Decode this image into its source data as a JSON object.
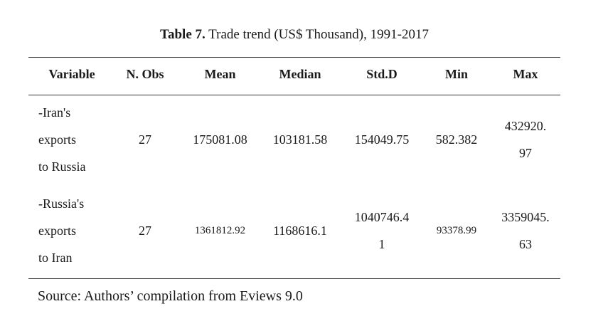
{
  "caption": {
    "label": "Table 7.",
    "text": " Trade trend (US$ Thousand), 1991-2017"
  },
  "table": {
    "headers": [
      "Variable",
      "N. Obs",
      "Mean",
      "Median",
      "Std.D",
      "Min",
      "Max"
    ],
    "rows": [
      {
        "variable": [
          "-Iran's",
          "exports",
          "to Russia"
        ],
        "n_obs": "27",
        "mean": "175081.08",
        "median": "103181.58",
        "std": [
          "154049.75"
        ],
        "min": "582.382",
        "max": [
          "432920.",
          "97"
        ]
      },
      {
        "variable": [
          "-Russia's",
          "exports",
          "to Iran"
        ],
        "n_obs": "27",
        "mean": "1361812.92",
        "median": "1168616.1",
        "std": [
          "1040746.4",
          "1"
        ],
        "min": "93378.99",
        "max": [
          "3359045.",
          "63"
        ]
      }
    ]
  },
  "source": "Source: Authors’ compilation from Eviews 9.0"
}
